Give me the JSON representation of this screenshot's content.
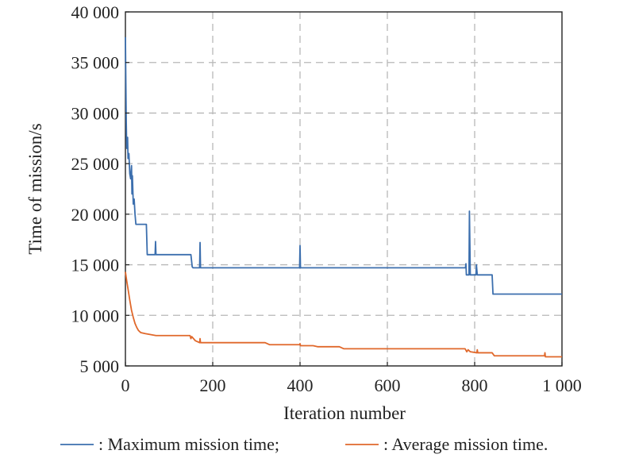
{
  "chart_data": {
    "type": "line",
    "xlabel": "Iteration number",
    "ylabel": "Time of mission/s",
    "xlim": [
      0,
      1000
    ],
    "ylim": [
      5000,
      40000
    ],
    "xticks": [
      0,
      200,
      400,
      600,
      800,
      1000
    ],
    "xtick_labels": [
      "0",
      "200",
      "400",
      "600",
      "800",
      "1 000"
    ],
    "yticks": [
      5000,
      10000,
      15000,
      20000,
      25000,
      30000,
      35000,
      40000
    ],
    "ytick_labels": [
      "5 000",
      "10 000",
      "15 000",
      "20 000",
      "25 000",
      "30 000",
      "35 000",
      "40 000"
    ],
    "grid": true,
    "legend_position": "bottom",
    "series": [
      {
        "name": ": Maximum mission time;",
        "color": "#3c6fae",
        "points": [
          [
            0,
            37500
          ],
          [
            1,
            33000
          ],
          [
            2,
            29000
          ],
          [
            3,
            26500
          ],
          [
            5,
            27600
          ],
          [
            6,
            25500
          ],
          [
            8,
            26000
          ],
          [
            10,
            24000
          ],
          [
            12,
            23500
          ],
          [
            14,
            24800
          ],
          [
            15,
            22000
          ],
          [
            16,
            23800
          ],
          [
            18,
            21000
          ],
          [
            20,
            21500
          ],
          [
            22,
            20000
          ],
          [
            24,
            19000
          ],
          [
            30,
            19000
          ],
          [
            40,
            19000
          ],
          [
            48,
            19000
          ],
          [
            50,
            16000
          ],
          [
            68,
            16000
          ],
          [
            69,
            17300
          ],
          [
            70,
            16000
          ],
          [
            150,
            16000
          ],
          [
            153,
            14800
          ],
          [
            155,
            14700
          ],
          [
            170,
            14700
          ],
          [
            171,
            17200
          ],
          [
            172,
            14700
          ],
          [
            399,
            14700
          ],
          [
            400,
            16900
          ],
          [
            401,
            14700
          ],
          [
            779,
            14700
          ],
          [
            780,
            15100
          ],
          [
            781,
            14000
          ],
          [
            787,
            14000
          ],
          [
            788,
            20300
          ],
          [
            790,
            14000
          ],
          [
            803,
            14000
          ],
          [
            804,
            15000
          ],
          [
            806,
            14000
          ],
          [
            840,
            14000
          ],
          [
            842,
            12100
          ],
          [
            1000,
            12100
          ]
        ]
      },
      {
        "name": ": Average mission time.",
        "color": "#e0682b",
        "points": [
          [
            0,
            14300
          ],
          [
            3,
            13400
          ],
          [
            6,
            12600
          ],
          [
            10,
            11500
          ],
          [
            14,
            10500
          ],
          [
            18,
            9800
          ],
          [
            22,
            9200
          ],
          [
            26,
            8800
          ],
          [
            30,
            8500
          ],
          [
            35,
            8300
          ],
          [
            45,
            8200
          ],
          [
            70,
            8000
          ],
          [
            148,
            8000
          ],
          [
            150,
            7700
          ],
          [
            152,
            7900
          ],
          [
            160,
            7500
          ],
          [
            170,
            7300
          ],
          [
            171,
            7700
          ],
          [
            172,
            7300
          ],
          [
            320,
            7300
          ],
          [
            330,
            7100
          ],
          [
            399,
            7100
          ],
          [
            400,
            7200
          ],
          [
            401,
            7000
          ],
          [
            430,
            7000
          ],
          [
            440,
            6900
          ],
          [
            490,
            6900
          ],
          [
            500,
            6700
          ],
          [
            778,
            6700
          ],
          [
            782,
            6400
          ],
          [
            785,
            6600
          ],
          [
            790,
            6400
          ],
          [
            805,
            6300
          ],
          [
            806,
            6600
          ],
          [
            807,
            6300
          ],
          [
            840,
            6300
          ],
          [
            845,
            6000
          ],
          [
            960,
            6000
          ],
          [
            961,
            6300
          ],
          [
            962,
            5900
          ],
          [
            1000,
            5900
          ]
        ]
      }
    ]
  }
}
